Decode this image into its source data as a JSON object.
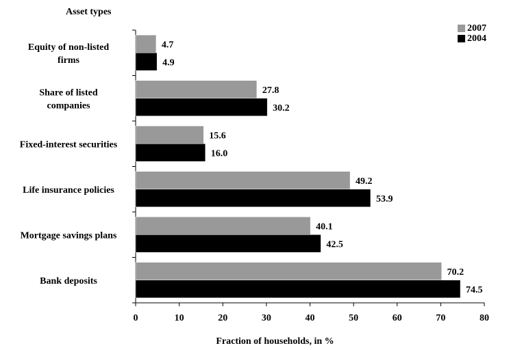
{
  "chart_data": {
    "type": "bar",
    "orientation": "horizontal",
    "title": "",
    "ylabel": "Asset types",
    "xlabel": "Fraction of households, in %",
    "xlim": [
      0,
      80
    ],
    "xticks": [
      0,
      10,
      20,
      30,
      40,
      50,
      60,
      70,
      80
    ],
    "categories": [
      [
        "Equity of non-listed",
        "firms"
      ],
      [
        "Share of listed",
        "companies"
      ],
      [
        "Fixed-interest securities"
      ],
      [
        "Life insurance policies"
      ],
      [
        "Mortgage savings plans"
      ],
      [
        "Bank deposits"
      ]
    ],
    "series": [
      {
        "name": "2007",
        "color": "#999999",
        "values": [
          4.7,
          27.8,
          15.6,
          49.2,
          40.1,
          70.2
        ]
      },
      {
        "name": "2004",
        "color": "#000000",
        "values": [
          4.9,
          30.2,
          16.0,
          53.9,
          42.5,
          74.5
        ]
      }
    ],
    "grid": false,
    "legend_position": "top-right"
  }
}
